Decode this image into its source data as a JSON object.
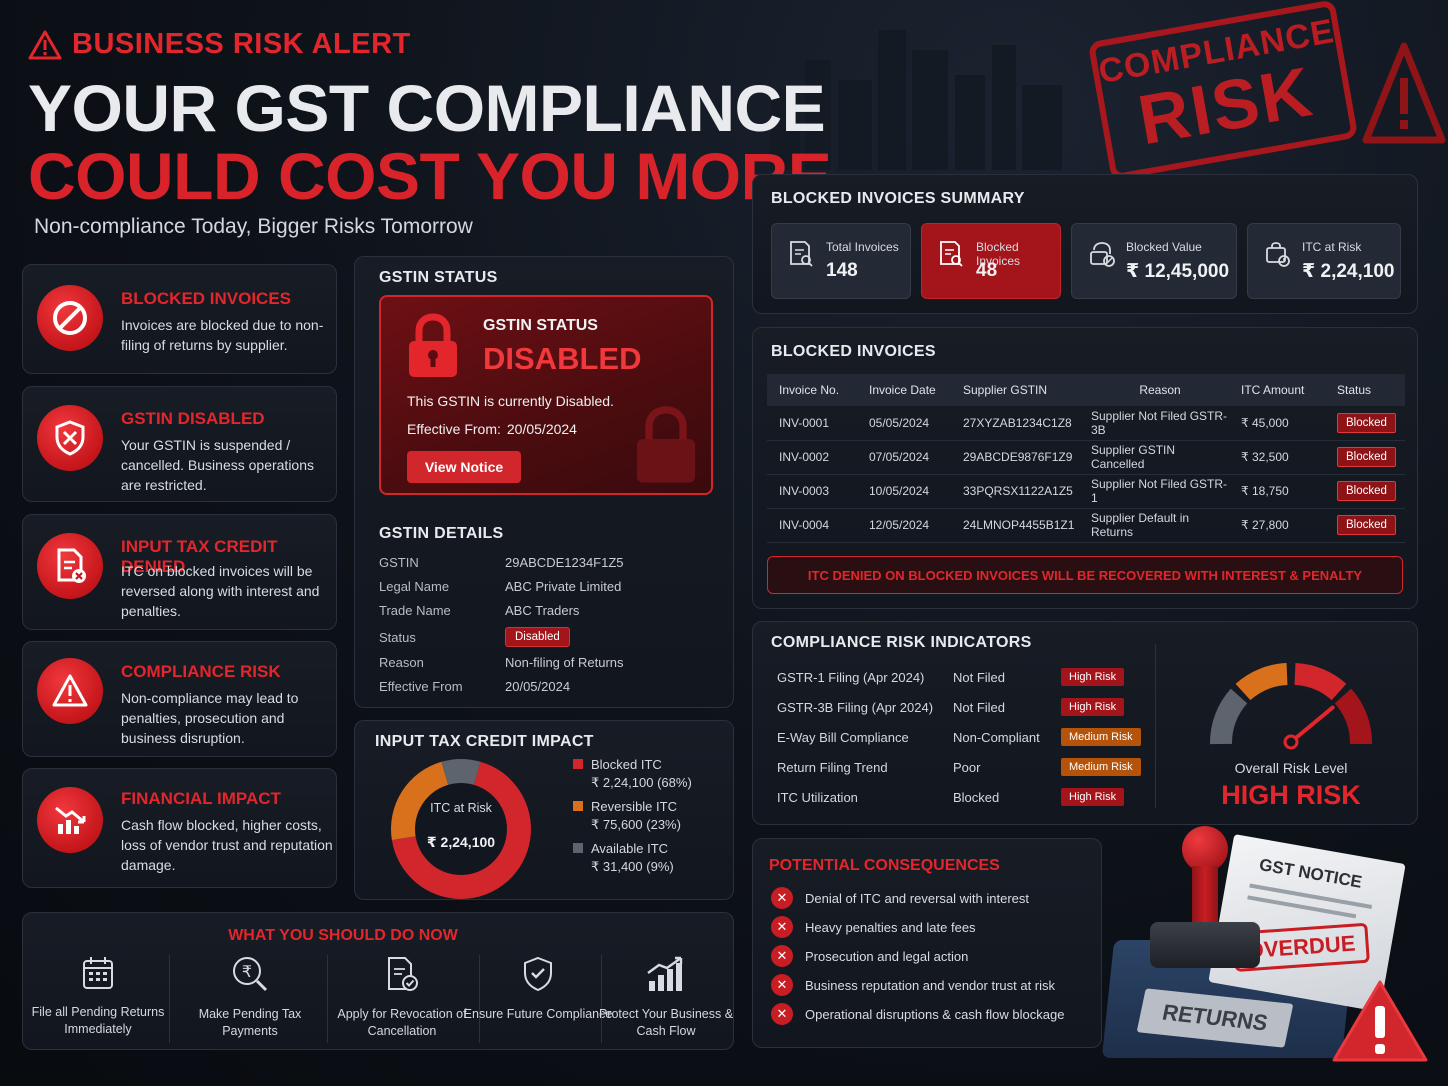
{
  "header": {
    "alert": "BUSINESS RISK ALERT",
    "line1": "YOUR GST COMPLIANCE",
    "line2": "COULD COST YOU MORE",
    "subtitle": "Non-compliance Today, Bigger Risks Tomorrow"
  },
  "stamp": {
    "line1": "COMPLIANCE",
    "line2": "RISK"
  },
  "risk_cards": [
    {
      "icon": "prohibited-icon",
      "title": "BLOCKED INVOICES",
      "text": "Invoices are blocked due to non-filing of returns by supplier."
    },
    {
      "icon": "shield-x-icon",
      "title": "GSTIN DISABLED",
      "text": "Your GSTIN is suspended / cancelled. Business operations are restricted."
    },
    {
      "icon": "document-x-icon",
      "title": "INPUT TAX CREDIT DENIED",
      "text": "ITC on blocked invoices will be reversed along with interest and penalties."
    },
    {
      "icon": "warning-triangle-icon",
      "title": "COMPLIANCE RISK",
      "text": "Non-compliance may lead to penalties, prosecution and business disruption."
    },
    {
      "icon": "chart-down-icon",
      "title": "FINANCIAL IMPACT",
      "text": "Cash flow blocked, higher costs, loss of vendor trust and reputation damage."
    }
  ],
  "gstin_status": {
    "panel_title": "GSTIN STATUS",
    "box_label": "GSTIN STATUS",
    "box_value": "DISABLED",
    "note": "This GSTIN is currently Disabled.",
    "effective_label": "Effective From:",
    "effective_value": "20/05/2024",
    "button": "View Notice",
    "details_title": "GSTIN DETAILS",
    "details": [
      {
        "k": "GSTIN",
        "v": "29ABCDE1234F1Z5"
      },
      {
        "k": "Legal Name",
        "v": "ABC Private Limited"
      },
      {
        "k": "Trade Name",
        "v": "ABC Traders"
      },
      {
        "k": "Status",
        "v": "Disabled"
      },
      {
        "k": "Reason",
        "v": "Non-filing of Returns"
      },
      {
        "k": "Effective From",
        "v": "20/05/2024"
      }
    ]
  },
  "itc_impact": {
    "title": "INPUT TAX CREDIT IMPACT",
    "center_label": "ITC at Risk",
    "center_value": "₹ 2,24,100",
    "legend": [
      {
        "name": "Blocked ITC",
        "value": "₹ 2,24,100 (68%)",
        "color": "#d1262b"
      },
      {
        "name": "Reversible ITC",
        "value": "₹ 75,600 (23%)",
        "color": "#d9711c"
      },
      {
        "name": "Available ITC",
        "value": "₹ 31,400 (9%)",
        "color": "#5d646e"
      }
    ]
  },
  "chart_data": {
    "type": "pie",
    "categories": [
      "Blocked ITC",
      "Reversible ITC",
      "Available ITC"
    ],
    "values": [
      68,
      23,
      9
    ],
    "colors": [
      "#d1262b",
      "#d9711c",
      "#5d646e"
    ]
  },
  "summary": {
    "title": "BLOCKED INVOICES SUMMARY",
    "cards": [
      {
        "label": "Total Invoices",
        "value": "148",
        "icon": "invoice-search-icon"
      },
      {
        "label": "Blocked Invoices",
        "value": "48",
        "icon": "invoice-block-icon"
      },
      {
        "label": "Blocked Value",
        "value": "₹ 12,45,000",
        "icon": "money-block-icon"
      },
      {
        "label": "ITC at Risk",
        "value": "₹ 2,24,100",
        "icon": "itc-risk-icon"
      }
    ]
  },
  "blocked_invoices": {
    "title": "BLOCKED INVOICES",
    "columns": [
      "Invoice No.",
      "Invoice Date",
      "Supplier GSTIN",
      "Reason",
      "ITC Amount",
      "Status"
    ],
    "rows": [
      [
        "INV-0001",
        "05/05/2024",
        "27XYZAB1234C1Z8",
        "Supplier Not Filed GSTR-3B",
        "₹ 45,000",
        "Blocked"
      ],
      [
        "INV-0002",
        "07/05/2024",
        "29ABCDE9876F1Z9",
        "Supplier GSTIN Cancelled",
        "₹ 32,500",
        "Blocked"
      ],
      [
        "INV-0003",
        "10/05/2024",
        "33PQRSX1122A1Z5",
        "Supplier Not Filed GSTR-1",
        "₹ 18,750",
        "Blocked"
      ],
      [
        "INV-0004",
        "12/05/2024",
        "24LMNOP4455B1Z1",
        "Supplier Default in Returns",
        "₹ 27,800",
        "Blocked"
      ]
    ],
    "warning": "ITC DENIED ON BLOCKED INVOICES WILL BE RECOVERED WITH INTEREST & PENALTY"
  },
  "indicators": {
    "title": "COMPLIANCE RISK INDICATORS",
    "rows": [
      {
        "name": "GSTR-1 Filing (Apr 2024)",
        "status": "Not Filed",
        "risk": "High Risk",
        "level": "high"
      },
      {
        "name": "GSTR-3B Filing (Apr 2024)",
        "status": "Not Filed",
        "risk": "High Risk",
        "level": "high"
      },
      {
        "name": "E-Way Bill Compliance",
        "status": "Non-Compliant",
        "risk": "Medium Risk",
        "level": "med"
      },
      {
        "name": "Return Filing Trend",
        "status": "Poor",
        "risk": "Medium Risk",
        "level": "med"
      },
      {
        "name": "ITC Utilization",
        "status": "Blocked",
        "risk": "High Risk",
        "level": "high"
      }
    ],
    "gauge_label": "Overall Risk Level",
    "gauge_value": "HIGH RISK",
    "gauge_level": 0.78
  },
  "consequences": {
    "title": "POTENTIAL CONSEQUENCES",
    "items": [
      "Denial of ITC and reversal with interest",
      "Heavy penalties and late fees",
      "Prosecution and legal action",
      "Business reputation and vendor trust at risk",
      "Operational disruptions & cash flow blockage"
    ]
  },
  "illustration": {
    "notice": "GST NOTICE",
    "overdue": "OVERDUE",
    "book": "RETURNS"
  },
  "actions": {
    "title": "WHAT YOU SHOULD DO NOW",
    "items": [
      {
        "label": "File all Pending Returns Immediately",
        "icon": "calendar-icon"
      },
      {
        "label": "Make Pending Tax Payments",
        "icon": "rupee-search-icon"
      },
      {
        "label": "Apply for Revocation of Cancellation",
        "icon": "document-check-icon"
      },
      {
        "label": "Ensure Future Compliance",
        "icon": "shield-check-icon"
      },
      {
        "label": "Protect Your Business & Cash Flow",
        "icon": "growth-chart-icon"
      }
    ]
  }
}
